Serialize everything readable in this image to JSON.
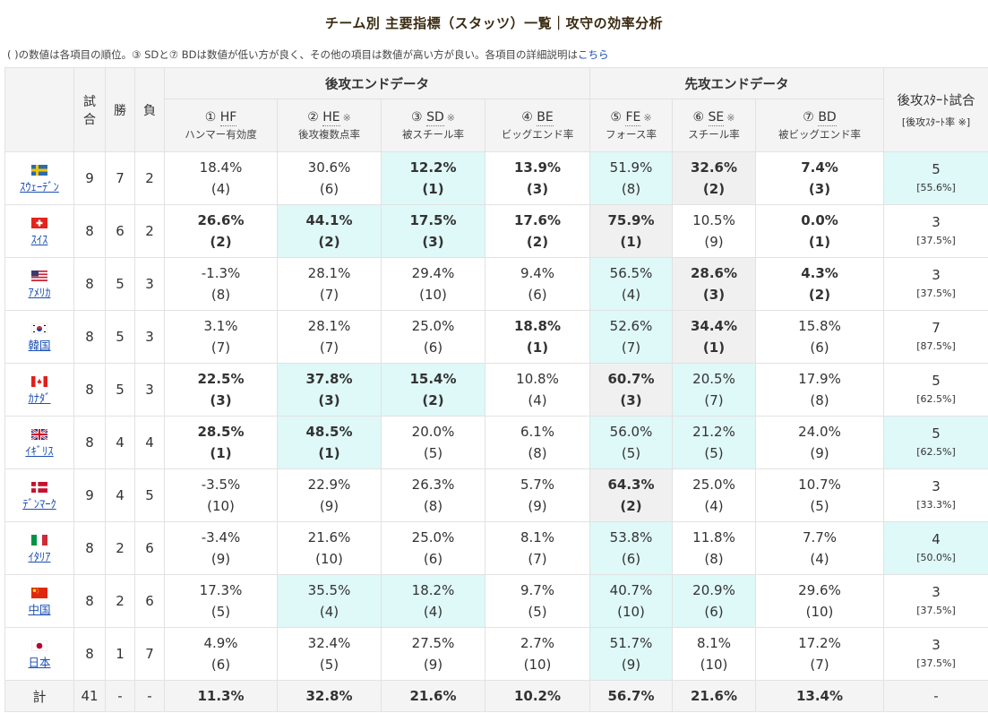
{
  "page": {
    "title": "チーム別 主要指標（スタッツ）一覧｜攻守の効率分析",
    "note": "( )の数値は各項目の順位。③ SDと⑦ BDは数値が低い方が良く、その他の項目は数値が高い方が良い。各項目の詳細説明は",
    "note_link": "こちら"
  },
  "header": {
    "games": "試合",
    "wins": "勝",
    "losses": "負",
    "group_hammer": "後攻エンドデータ",
    "group_first": "先攻エンドデータ",
    "group_start": "後攻ｽﾀｰﾄ試合",
    "group_start_sub": "[後攻ｽﾀｰﾄ率",
    "mark": "※",
    "metrics": [
      {
        "num": "①",
        "abbr": "HF",
        "mark": false,
        "desc": "ハンマー有効度"
      },
      {
        "num": "②",
        "abbr": "HE",
        "mark": true,
        "desc": "後攻複数点率"
      },
      {
        "num": "③",
        "abbr": "SD",
        "mark": true,
        "desc": "被スチール率"
      },
      {
        "num": "④",
        "abbr": "BE",
        "mark": false,
        "desc": "ビッグエンド率"
      },
      {
        "num": "⑤",
        "abbr": "FE",
        "mark": true,
        "desc": "フォース率"
      },
      {
        "num": "⑥",
        "abbr": "SE",
        "mark": true,
        "desc": "スチール率"
      },
      {
        "num": "⑦",
        "abbr": "BD",
        "mark": false,
        "desc": "被ビッグエンド率"
      }
    ]
  },
  "teams": [
    {
      "name": "ｽｳｪｰﾃﾞﾝ",
      "flag": "sweden",
      "games": "9",
      "wins": "7",
      "losses": "2",
      "stats": [
        {
          "value": "18.4%",
          "rank": "(4)",
          "bold": false,
          "bg": "none"
        },
        {
          "value": "30.6%",
          "rank": "(6)",
          "bold": false,
          "bg": "none"
        },
        {
          "value": "12.2%",
          "rank": "(1)",
          "bold": true,
          "bg": "hl"
        },
        {
          "value": "13.9%",
          "rank": "(3)",
          "bold": true,
          "bg": "none"
        },
        {
          "value": "51.9%",
          "rank": "(8)",
          "bold": false,
          "bg": "hl"
        },
        {
          "value": "32.6%",
          "rank": "(2)",
          "bold": true,
          "bg": "gy"
        },
        {
          "value": "7.4%",
          "rank": "(3)",
          "bold": true,
          "bg": "none"
        }
      ],
      "start": "5",
      "start_rate": "[55.6%]",
      "start_bg": "hl"
    },
    {
      "name": "ｽｲｽ",
      "flag": "swiss",
      "games": "8",
      "wins": "6",
      "losses": "2",
      "stats": [
        {
          "value": "26.6%",
          "rank": "(2)",
          "bold": true,
          "bg": "none"
        },
        {
          "value": "44.1%",
          "rank": "(2)",
          "bold": true,
          "bg": "hl"
        },
        {
          "value": "17.5%",
          "rank": "(3)",
          "bold": true,
          "bg": "hl"
        },
        {
          "value": "17.6%",
          "rank": "(2)",
          "bold": true,
          "bg": "none"
        },
        {
          "value": "75.9%",
          "rank": "(1)",
          "bold": true,
          "bg": "gy"
        },
        {
          "value": "10.5%",
          "rank": "(9)",
          "bold": false,
          "bg": "none"
        },
        {
          "value": "0.0%",
          "rank": "(1)",
          "bold": true,
          "bg": "none"
        }
      ],
      "start": "3",
      "start_rate": "[37.5%]",
      "start_bg": "none"
    },
    {
      "name": "ｱﾒﾘｶ",
      "flag": "usa",
      "games": "8",
      "wins": "5",
      "losses": "3",
      "stats": [
        {
          "value": "-1.3%",
          "rank": "(8)",
          "bold": false,
          "bg": "none"
        },
        {
          "value": "28.1%",
          "rank": "(7)",
          "bold": false,
          "bg": "none"
        },
        {
          "value": "29.4%",
          "rank": "(10)",
          "bold": false,
          "bg": "none"
        },
        {
          "value": "9.4%",
          "rank": "(6)",
          "bold": false,
          "bg": "none"
        },
        {
          "value": "56.5%",
          "rank": "(4)",
          "bold": false,
          "bg": "hl"
        },
        {
          "value": "28.6%",
          "rank": "(3)",
          "bold": true,
          "bg": "gy"
        },
        {
          "value": "4.3%",
          "rank": "(2)",
          "bold": true,
          "bg": "none"
        }
      ],
      "start": "3",
      "start_rate": "[37.5%]",
      "start_bg": "none"
    },
    {
      "name": "韓国",
      "flag": "korea",
      "games": "8",
      "wins": "5",
      "losses": "3",
      "stats": [
        {
          "value": "3.1%",
          "rank": "(7)",
          "bold": false,
          "bg": "none"
        },
        {
          "value": "28.1%",
          "rank": "(7)",
          "bold": false,
          "bg": "none"
        },
        {
          "value": "25.0%",
          "rank": "(6)",
          "bold": false,
          "bg": "none"
        },
        {
          "value": "18.8%",
          "rank": "(1)",
          "bold": true,
          "bg": "none"
        },
        {
          "value": "52.6%",
          "rank": "(7)",
          "bold": false,
          "bg": "hl"
        },
        {
          "value": "34.4%",
          "rank": "(1)",
          "bold": true,
          "bg": "gy"
        },
        {
          "value": "15.8%",
          "rank": "(6)",
          "bold": false,
          "bg": "none"
        }
      ],
      "start": "7",
      "start_rate": "[87.5%]",
      "start_bg": "none"
    },
    {
      "name": "ｶﾅﾀﾞ",
      "flag": "canada",
      "games": "8",
      "wins": "5",
      "losses": "3",
      "stats": [
        {
          "value": "22.5%",
          "rank": "(3)",
          "bold": true,
          "bg": "none"
        },
        {
          "value": "37.8%",
          "rank": "(3)",
          "bold": true,
          "bg": "hl"
        },
        {
          "value": "15.4%",
          "rank": "(2)",
          "bold": true,
          "bg": "hl"
        },
        {
          "value": "10.8%",
          "rank": "(4)",
          "bold": false,
          "bg": "none"
        },
        {
          "value": "60.7%",
          "rank": "(3)",
          "bold": true,
          "bg": "gy"
        },
        {
          "value": "20.5%",
          "rank": "(7)",
          "bold": false,
          "bg": "hl"
        },
        {
          "value": "17.9%",
          "rank": "(8)",
          "bold": false,
          "bg": "none"
        }
      ],
      "start": "5",
      "start_rate": "[62.5%]",
      "start_bg": "none"
    },
    {
      "name": "ｲｷﾞﾘｽ",
      "flag": "uk",
      "games": "8",
      "wins": "4",
      "losses": "4",
      "stats": [
        {
          "value": "28.5%",
          "rank": "(1)",
          "bold": true,
          "bg": "none"
        },
        {
          "value": "48.5%",
          "rank": "(1)",
          "bold": true,
          "bg": "hl"
        },
        {
          "value": "20.0%",
          "rank": "(5)",
          "bold": false,
          "bg": "none"
        },
        {
          "value": "6.1%",
          "rank": "(8)",
          "bold": false,
          "bg": "none"
        },
        {
          "value": "56.0%",
          "rank": "(5)",
          "bold": false,
          "bg": "hl"
        },
        {
          "value": "21.2%",
          "rank": "(5)",
          "bold": false,
          "bg": "hl"
        },
        {
          "value": "24.0%",
          "rank": "(9)",
          "bold": false,
          "bg": "none"
        }
      ],
      "start": "5",
      "start_rate": "[62.5%]",
      "start_bg": "hl"
    },
    {
      "name": "ﾃﾞﾝﾏｰｸ",
      "flag": "denmark",
      "games": "9",
      "wins": "4",
      "losses": "5",
      "stats": [
        {
          "value": "-3.5%",
          "rank": "(10)",
          "bold": false,
          "bg": "none"
        },
        {
          "value": "22.9%",
          "rank": "(9)",
          "bold": false,
          "bg": "none"
        },
        {
          "value": "26.3%",
          "rank": "(8)",
          "bold": false,
          "bg": "none"
        },
        {
          "value": "5.7%",
          "rank": "(9)",
          "bold": false,
          "bg": "none"
        },
        {
          "value": "64.3%",
          "rank": "(2)",
          "bold": true,
          "bg": "gy"
        },
        {
          "value": "25.0%",
          "rank": "(4)",
          "bold": false,
          "bg": "none"
        },
        {
          "value": "10.7%",
          "rank": "(5)",
          "bold": false,
          "bg": "none"
        }
      ],
      "start": "3",
      "start_rate": "[33.3%]",
      "start_bg": "none"
    },
    {
      "name": "ｲﾀﾘｱ",
      "flag": "italy",
      "games": "8",
      "wins": "2",
      "losses": "6",
      "stats": [
        {
          "value": "-3.4%",
          "rank": "(9)",
          "bold": false,
          "bg": "none"
        },
        {
          "value": "21.6%",
          "rank": "(10)",
          "bold": false,
          "bg": "none"
        },
        {
          "value": "25.0%",
          "rank": "(6)",
          "bold": false,
          "bg": "none"
        },
        {
          "value": "8.1%",
          "rank": "(7)",
          "bold": false,
          "bg": "none"
        },
        {
          "value": "53.8%",
          "rank": "(6)",
          "bold": false,
          "bg": "hl"
        },
        {
          "value": "11.8%",
          "rank": "(8)",
          "bold": false,
          "bg": "none"
        },
        {
          "value": "7.7%",
          "rank": "(4)",
          "bold": false,
          "bg": "none"
        }
      ],
      "start": "4",
      "start_rate": "[50.0%]",
      "start_bg": "hl"
    },
    {
      "name": "中国",
      "flag": "china",
      "games": "8",
      "wins": "2",
      "losses": "6",
      "stats": [
        {
          "value": "17.3%",
          "rank": "(5)",
          "bold": false,
          "bg": "none"
        },
        {
          "value": "35.5%",
          "rank": "(4)",
          "bold": false,
          "bg": "hl"
        },
        {
          "value": "18.2%",
          "rank": "(4)",
          "bold": false,
          "bg": "hl"
        },
        {
          "value": "9.7%",
          "rank": "(5)",
          "bold": false,
          "bg": "none"
        },
        {
          "value": "40.7%",
          "rank": "(10)",
          "bold": false,
          "bg": "hl"
        },
        {
          "value": "20.9%",
          "rank": "(6)",
          "bold": false,
          "bg": "hl"
        },
        {
          "value": "29.6%",
          "rank": "(10)",
          "bold": false,
          "bg": "none"
        }
      ],
      "start": "3",
      "start_rate": "[37.5%]",
      "start_bg": "none"
    },
    {
      "name": "日本",
      "flag": "japan",
      "games": "8",
      "wins": "1",
      "losses": "7",
      "stats": [
        {
          "value": "4.9%",
          "rank": "(6)",
          "bold": false,
          "bg": "none"
        },
        {
          "value": "32.4%",
          "rank": "(5)",
          "bold": false,
          "bg": "none"
        },
        {
          "value": "27.5%",
          "rank": "(9)",
          "bold": false,
          "bg": "none"
        },
        {
          "value": "2.7%",
          "rank": "(10)",
          "bold": false,
          "bg": "none"
        },
        {
          "value": "51.7%",
          "rank": "(9)",
          "bold": false,
          "bg": "hl"
        },
        {
          "value": "8.1%",
          "rank": "(10)",
          "bold": false,
          "bg": "none"
        },
        {
          "value": "17.2%",
          "rank": "(7)",
          "bold": false,
          "bg": "none"
        }
      ],
      "start": "3",
      "start_rate": "[37.5%]",
      "start_bg": "none"
    }
  ],
  "total": {
    "label": "計",
    "games": "41",
    "wins": "-",
    "losses": "-",
    "stats": [
      "11.3%",
      "32.8%",
      "21.6%",
      "10.2%",
      "56.7%",
      "21.6%",
      "13.4%"
    ],
    "start": "-"
  },
  "colors": {
    "highlight": "#dff8f8",
    "gray": "#f0f0f0",
    "link": "#1a4fb5"
  }
}
